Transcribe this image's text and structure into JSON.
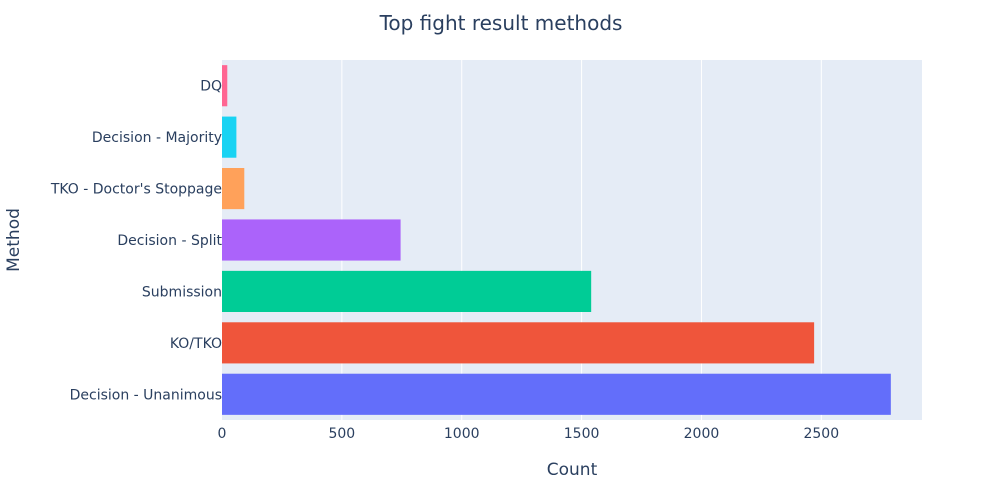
{
  "chart_data": {
    "type": "bar",
    "orientation": "horizontal",
    "title": "Top fight result methods",
    "xlabel": "Count",
    "ylabel": "Method",
    "xlim": [
      0,
      2920
    ],
    "x_ticks": [
      0,
      500,
      1000,
      1500,
      2000,
      2500
    ],
    "x_tick_labels": [
      "0",
      "500",
      "1000",
      "1500",
      "2000",
      "2500"
    ],
    "grid": true,
    "legend": "none",
    "categories": [
      "Decision - Unanimous",
      "KO/TKO",
      "Submission",
      "Decision - Split",
      "TKO - Doctor's Stoppage",
      "Decision - Majority",
      "DQ"
    ],
    "values": [
      2790,
      2470,
      1540,
      745,
      93,
      60,
      22
    ],
    "colors": [
      "#636efa",
      "#ef553b",
      "#00cc96",
      "#ab63fa",
      "#ffa15a",
      "#19d3f3",
      "#ff6692"
    ],
    "plot_bg": "#e5ecf6",
    "text_color": "#2a3f5f",
    "grid_color": "#ffffff"
  }
}
